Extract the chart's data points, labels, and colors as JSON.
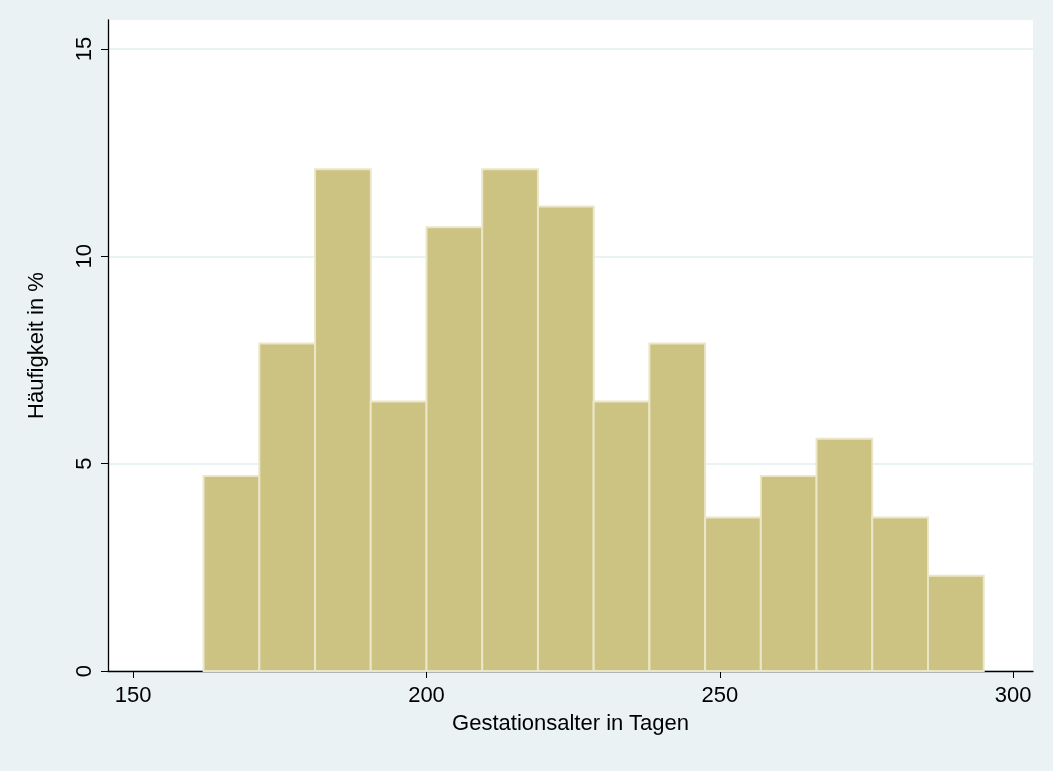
{
  "chart_data": {
    "type": "histogram",
    "xlabel": "Gestationsalter in Tagen",
    "ylabel": "Häufigkeit in %",
    "bins": [
      162,
      171.5,
      181,
      190.5,
      200,
      209.5,
      219,
      228.5,
      238,
      247.5,
      257,
      266.5,
      276,
      285.5,
      295
    ],
    "values": [
      4.7,
      7.9,
      12.1,
      6.5,
      10.7,
      12.1,
      11.2,
      6.5,
      7.9,
      3.7,
      4.7,
      5.6,
      3.7,
      2.3
    ],
    "color": "#ccc282",
    "xlim": [
      145.7,
      303.4
    ],
    "xticks": [
      150,
      200,
      250,
      300
    ],
    "ylim": [
      0,
      15.7
    ],
    "yticks": [
      0,
      5,
      10,
      15
    ],
    "grid": "y"
  }
}
